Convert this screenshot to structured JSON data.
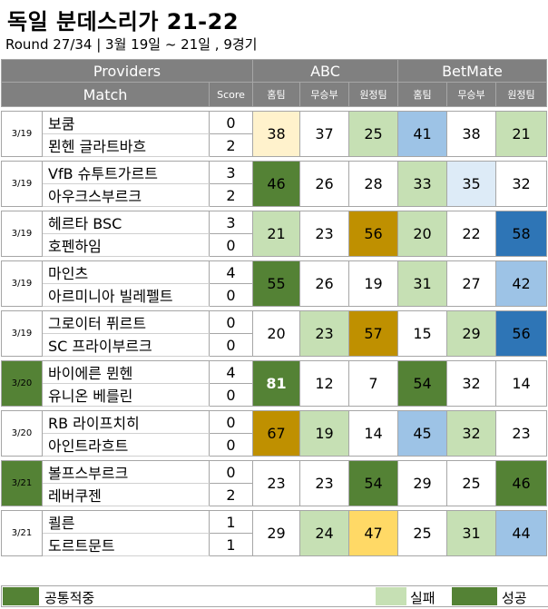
{
  "title": "독일 분데스리가 21-22",
  "subtitle": "Round 27/34 | 3월 19일 ~ 21일 , 9경기",
  "header": {
    "providers": "Providers",
    "abc": "ABC",
    "betmate": "BetMate",
    "match": "Match",
    "score": "Score",
    "home": "홈팀",
    "draw": "무승부",
    "away": "원정팀"
  },
  "matches": [
    {
      "date": "3/19",
      "home": "보쿰",
      "away": "묀헨 글라트바흐",
      "home_score": "0",
      "away_score": "2",
      "abc": [
        "38",
        "37",
        "25"
      ],
      "betmate": [
        "41",
        "38",
        "21"
      ]
    },
    {
      "date": "3/19",
      "home": "VfB 슈투트가르트",
      "away": "아우크스부르크",
      "home_score": "3",
      "away_score": "2",
      "abc": [
        "46",
        "26",
        "28"
      ],
      "betmate": [
        "33",
        "35",
        "32"
      ]
    },
    {
      "date": "3/19",
      "home": "헤르타 BSC",
      "away": "호펜하임",
      "home_score": "3",
      "away_score": "0",
      "abc": [
        "21",
        "23",
        "56"
      ],
      "betmate": [
        "20",
        "22",
        "58"
      ]
    },
    {
      "date": "3/19",
      "home": "마인츠",
      "away": "아르미니아 빌레펠트",
      "home_score": "4",
      "away_score": "0",
      "abc": [
        "55",
        "26",
        "19"
      ],
      "betmate": [
        "31",
        "27",
        "42"
      ]
    },
    {
      "date": "3/19",
      "home": "그로이터 퓌르트",
      "away": "SC 프라이부르크",
      "home_score": "0",
      "away_score": "0",
      "abc": [
        "20",
        "23",
        "57"
      ],
      "betmate": [
        "15",
        "29",
        "56"
      ]
    },
    {
      "date": "3/20",
      "home": "바이에른 뮌헨",
      "away": "유니온 베를린",
      "home_score": "4",
      "away_score": "0",
      "abc": [
        "81",
        "12",
        "7"
      ],
      "betmate": [
        "54",
        "32",
        "14"
      ]
    },
    {
      "date": "3/20",
      "home": "RB 라이프치히",
      "away": "아인트라흐트",
      "home_score": "0",
      "away_score": "0",
      "abc": [
        "67",
        "19",
        "14"
      ],
      "betmate": [
        "45",
        "32",
        "23"
      ]
    },
    {
      "date": "3/21",
      "home": "볼프스부르크",
      "away": "레버쿠젠",
      "home_score": "0",
      "away_score": "2",
      "abc": [
        "23",
        "23",
        "54"
      ],
      "betmate": [
        "29",
        "25",
        "46"
      ]
    },
    {
      "date": "3/21",
      "home": "쾰른",
      "away": "도르트문트",
      "home_score": "1",
      "away_score": "1",
      "abc": [
        "29",
        "24",
        "47"
      ],
      "betmate": [
        "25",
        "31",
        "44"
      ]
    }
  ],
  "legend": {
    "common": "공통적중",
    "fail": "실패",
    "success": "성공"
  },
  "colors": {
    "header_bg": "#808080",
    "success_dark_green": "#548235",
    "fail_light_green": "#c6e0b4",
    "gold": "#bf9000",
    "yellow": "#ffd966",
    "pale_yellow": "#fff2cc",
    "light_blue": "#9dc3e6",
    "pale_blue": "#ddebf7",
    "dark_blue": "#2e75b6"
  }
}
